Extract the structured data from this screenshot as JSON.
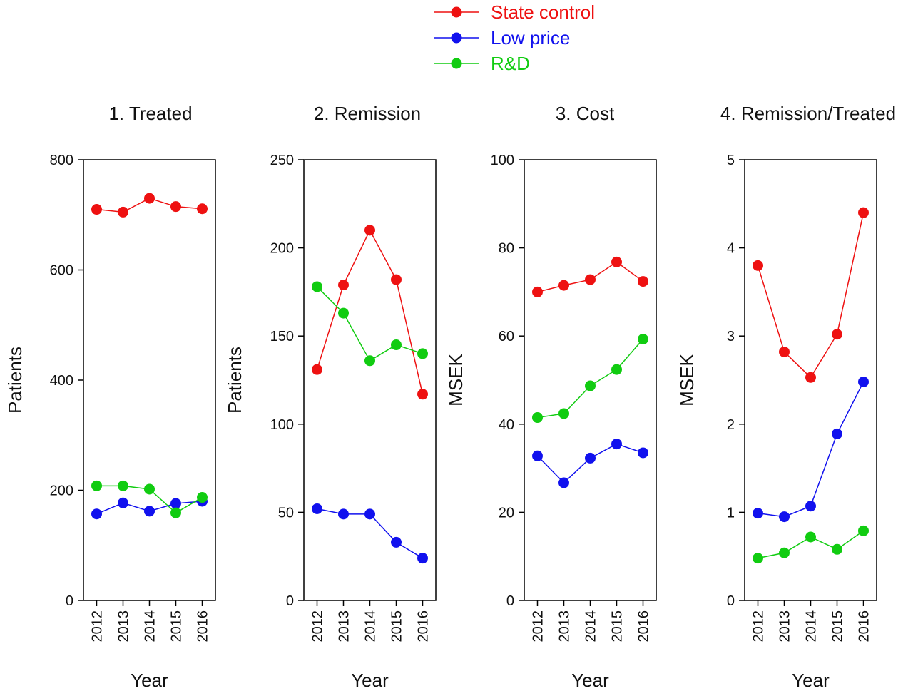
{
  "legend": {
    "placement": "top-center",
    "entries": [
      {
        "name": "State control",
        "color": "#ee1111"
      },
      {
        "name": "Low price",
        "color": "#1111ee"
      },
      {
        "name": "R&D",
        "color": "#11cc11"
      }
    ]
  },
  "chart_data": [
    {
      "type": "line",
      "title": "1. Treated",
      "xlabel": "Year",
      "ylabel": "Patients",
      "x": [
        "2012",
        "2013",
        "2014",
        "2015",
        "2016"
      ],
      "ylim": [
        0,
        800
      ],
      "yticks": [
        0,
        200,
        400,
        600,
        800
      ],
      "series": [
        {
          "name": "State control",
          "values": [
            710,
            705,
            730,
            715,
            711
          ]
        },
        {
          "name": "Low price",
          "values": [
            157,
            177,
            162,
            176,
            180
          ]
        },
        {
          "name": "R&D",
          "values": [
            208,
            208,
            202,
            159,
            187
          ]
        }
      ]
    },
    {
      "type": "line",
      "title": "2. Remission",
      "xlabel": "Year",
      "ylabel": "Patients",
      "x": [
        "2012",
        "2013",
        "2014",
        "2015",
        "2016"
      ],
      "ylim": [
        0,
        250
      ],
      "yticks": [
        0,
        50,
        100,
        150,
        200,
        250
      ],
      "series": [
        {
          "name": "State control",
          "values": [
            131,
            179,
            210,
            182,
            117
          ]
        },
        {
          "name": "Low price",
          "values": [
            52,
            49,
            49,
            33,
            24
          ]
        },
        {
          "name": "R&D",
          "values": [
            178,
            163,
            136,
            145,
            140
          ]
        }
      ]
    },
    {
      "type": "line",
      "title": "3. Cost",
      "xlabel": "Year",
      "ylabel": "MSEK",
      "x": [
        "2012",
        "2013",
        "2014",
        "2015",
        "2016"
      ],
      "ylim": [
        0,
        100
      ],
      "yticks": [
        0,
        20,
        40,
        60,
        80,
        100
      ],
      "series": [
        {
          "name": "State control",
          "values": [
            70,
            71.5,
            72.8,
            76.8,
            72.4
          ]
        },
        {
          "name": "Low price",
          "values": [
            32.8,
            26.7,
            32.3,
            35.5,
            33.5
          ]
        },
        {
          "name": "R&D",
          "values": [
            41.5,
            42.4,
            48.7,
            52.4,
            59.3
          ]
        }
      ]
    },
    {
      "type": "line",
      "title": "4. Remission/Treated",
      "xlabel": "Year",
      "ylabel": "MSEK",
      "x": [
        "2012",
        "2013",
        "2014",
        "2015",
        "2016"
      ],
      "ylim": [
        0,
        5
      ],
      "yticks": [
        0,
        1,
        2,
        3,
        4,
        5
      ],
      "series": [
        {
          "name": "State control",
          "values": [
            3.8,
            2.82,
            2.53,
            3.02,
            4.4
          ]
        },
        {
          "name": "Low price",
          "values": [
            0.99,
            0.95,
            1.07,
            1.89,
            2.48
          ]
        },
        {
          "name": "R&D",
          "values": [
            0.48,
            0.54,
            0.72,
            0.58,
            0.79
          ]
        }
      ]
    }
  ]
}
